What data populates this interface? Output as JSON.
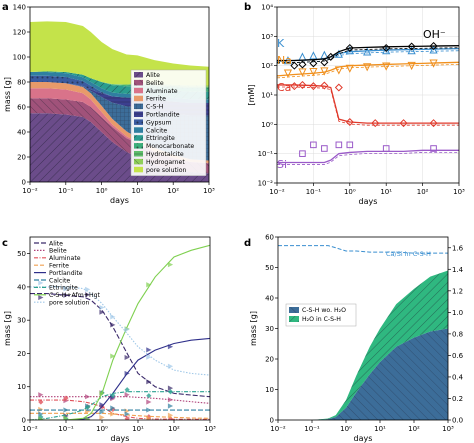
{
  "panels": {
    "a": {
      "label": "a",
      "xlabel": "days",
      "ylabel": "mass [g]",
      "xticks": [
        "10⁻²",
        "10⁻¹",
        "10⁰",
        "10¹",
        "10²",
        "10³"
      ],
      "yticks": [
        "0",
        "20",
        "40",
        "60",
        "80",
        "100",
        "120",
        "140"
      ],
      "legend": [
        "Alite",
        "Belite",
        "Aluminate",
        "Ferrite",
        "C-S-H",
        "Portlandite",
        "Gypsum",
        "Calcite",
        "Ettringite",
        "Monocarbonate",
        "Hydrotalcite",
        "Hydrogarnet",
        "pore solution"
      ],
      "colors": {
        "Alite": "#6b4c8a",
        "Belite": "#a0527a",
        "Aluminate": "#d9738a",
        "Ferrite": "#e89a6a",
        "C-S-H": "#3c6d99",
        "Portlandite": "#3b3f8f",
        "Gypsum": "#3a5ba0",
        "Calcite": "#2f7fa0",
        "Ettringite": "#2a9d8f",
        "Monocarbonate": "#3cae7a",
        "Hydrotalcite": "#5fbe6a",
        "Hydrogarnet": "#8fcf5a",
        "pore solution": "#c4e34a"
      }
    },
    "b": {
      "label": "b",
      "xlabel": "days",
      "ylabel": "[mM]",
      "xticks": [
        "10⁻²",
        "10⁻¹",
        "10⁰",
        "10¹",
        "10²",
        "10³"
      ],
      "yticks": [
        "10⁻²",
        "10⁻¹",
        "10⁰",
        "10¹",
        "10²",
        "10³",
        "10⁴"
      ],
      "species": [
        {
          "name": "K",
          "color": "#3a8fd0"
        },
        {
          "name": "Na",
          "color": "#f0901e"
        },
        {
          "name": "Ca",
          "color": "#e03a2c"
        },
        {
          "name": "Si",
          "color": "#9a5ac8"
        },
        {
          "name": "OH⁻",
          "color": "#000000"
        }
      ]
    },
    "c": {
      "label": "c",
      "xlabel": "days",
      "ylabel": "mass [g]",
      "xticks": [
        "10⁻²",
        "10⁻¹",
        "10⁰",
        "10¹",
        "10²",
        "10³"
      ],
      "yticks": [
        "0",
        "10",
        "20",
        "30",
        "40",
        "50"
      ],
      "legend": [
        {
          "name": "Alite",
          "color": "#3b2a6b",
          "dash": "5,2"
        },
        {
          "name": "Belite",
          "color": "#b0427a",
          "dash": "1.5,1.5"
        },
        {
          "name": "Aluminate",
          "color": "#e0505a",
          "dash": "4,1.5,1,1.5"
        },
        {
          "name": "Ferrite",
          "color": "#f0a050",
          "dash": "4,2"
        },
        {
          "name": "Portlandite",
          "color": "#2e2f8a",
          "dash": ""
        },
        {
          "name": "Calcite",
          "color": "#2f7fa0",
          "dash": "5,2"
        },
        {
          "name": "Ettringite",
          "color": "#2aa090",
          "dash": "4,1.5,1,1.5"
        },
        {
          "name": "C-S-H+Afm+Hgt",
          "color": "#7fd050",
          "dash": ""
        },
        {
          "name": "pore solution",
          "color": "#a0c8e8",
          "dash": "1.5,1.5"
        }
      ]
    },
    "d": {
      "label": "d",
      "xlabel": "days",
      "ylabel": "mass [g]",
      "xticks": [
        "10⁻²",
        "10⁻¹",
        "10⁰",
        "10¹",
        "10²",
        "10³"
      ],
      "yticks": [
        "0",
        "10",
        "20",
        "30",
        "40",
        "50",
        "60"
      ],
      "y2ticks": [
        "0.0",
        "0.2",
        "0.4",
        "0.6",
        "0.8",
        "1.0",
        "1.2",
        "1.4",
        "1.6"
      ],
      "casi_label": "Ca/Si in C-S-H",
      "legend": [
        "C-S-H wo. H₂O",
        "H₂O in C-S-H"
      ],
      "colors": {
        "csh": "#3c6d99",
        "water": "#2fb880",
        "casi": "#3a8fd0"
      }
    }
  },
  "chart_data": [
    {
      "type": "area",
      "panel": "a",
      "xscale": "log",
      "xlim": [
        0.01,
        1000
      ],
      "ylim": [
        0,
        140
      ],
      "x": [
        0.01,
        0.03,
        0.1,
        0.3,
        0.5,
        1,
        2,
        5,
        10,
        30,
        100,
        300,
        1000
      ],
      "series": [
        {
          "name": "Alite",
          "values": [
            55,
            55,
            54,
            52,
            48,
            40,
            32,
            24,
            20,
            14,
            10,
            8,
            7
          ]
        },
        {
          "name": "Belite",
          "values": [
            12,
            12,
            12,
            12,
            12,
            12,
            12,
            11,
            11,
            10,
            9,
            8,
            8
          ]
        },
        {
          "name": "Aluminate",
          "values": [
            8,
            8,
            8,
            7,
            6,
            4,
            2,
            1.5,
            1,
            0.5,
            0.3,
            0.2,
            0.2
          ]
        },
        {
          "name": "Ferrite",
          "values": [
            5,
            5,
            5,
            5,
            5,
            5,
            4.5,
            4,
            3.5,
            3,
            2.5,
            2,
            2
          ]
        },
        {
          "name": "C-S-H",
          "values": [
            0,
            0,
            0,
            0.5,
            2,
            7,
            13,
            20,
            24,
            29,
            33,
            35,
            36
          ]
        },
        {
          "name": "Portlandite",
          "values": [
            0,
            0,
            0,
            0.3,
            1,
            3,
            5,
            7,
            8,
            9,
            9.5,
            10,
            10
          ]
        },
        {
          "name": "Gypsum",
          "values": [
            5,
            5,
            5,
            4,
            3,
            1,
            0,
            0,
            0,
            0,
            0,
            0,
            0
          ]
        },
        {
          "name": "Calcite",
          "values": [
            3,
            3,
            3,
            3,
            3,
            3,
            3,
            3,
            3,
            3,
            3,
            3,
            3
          ]
        },
        {
          "name": "Ettringite",
          "values": [
            0,
            0.5,
            1,
            2,
            3,
            5,
            6,
            6,
            6,
            6,
            6,
            6,
            6
          ]
        },
        {
          "name": "Monocarbonate",
          "values": [
            0,
            0,
            0,
            0,
            0,
            0,
            0.5,
            1,
            1.5,
            2,
            2.5,
            3,
            3
          ]
        },
        {
          "name": "Hydrotalcite",
          "values": [
            0,
            0,
            0,
            0,
            0,
            0,
            0.3,
            0.5,
            0.8,
            1,
            1,
            1,
            1
          ]
        },
        {
          "name": "Hydrogarnet",
          "values": [
            0,
            0,
            0,
            0,
            0,
            0,
            0,
            0,
            0.5,
            1,
            1,
            1,
            1
          ]
        },
        {
          "name": "pore solution",
          "values": [
            40,
            40,
            40,
            39,
            37,
            32,
            28,
            24,
            22,
            19,
            17,
            16,
            15
          ]
        }
      ]
    },
    {
      "type": "line",
      "panel": "b",
      "xscale": "log",
      "yscale": "log",
      "xlim": [
        0.01,
        1000
      ],
      "ylim": [
        0.01,
        10000
      ],
      "x": [
        0.01,
        0.03,
        0.1,
        0.2,
        0.3,
        0.5,
        1,
        3,
        10,
        30,
        100,
        300,
        1000
      ],
      "series": [
        {
          "name": "K",
          "values": [
            140,
            150,
            160,
            170,
            200,
            260,
            300,
            320,
            340,
            350,
            360,
            370,
            380
          ],
          "points_x": [
            0.02,
            0.05,
            0.1,
            0.2,
            0.5,
            1,
            3,
            10,
            50,
            200
          ],
          "points_y": [
            150,
            200,
            220,
            230,
            250,
            330,
            300,
            330,
            330,
            350
          ]
        },
        {
          "name": "Na",
          "values": [
            45,
            50,
            55,
            60,
            70,
            90,
            100,
            105,
            110,
            115,
            120,
            125,
            130
          ],
          "points_x": [
            0.02,
            0.05,
            0.1,
            0.2,
            0.5,
            1,
            3,
            10,
            50,
            200
          ],
          "points_y": [
            55,
            60,
            62,
            65,
            70,
            80,
            90,
            95,
            100,
            120
          ]
        },
        {
          "name": "Ca",
          "values": [
            22,
            22,
            21,
            20,
            18,
            1.5,
            1.2,
            1.1,
            1.1,
            1.1,
            1.1,
            1.1,
            1.1
          ],
          "points_x": [
            0.03,
            0.05,
            0.1,
            0.2,
            0.5,
            1,
            5,
            30,
            200
          ],
          "points_y": [
            20,
            22,
            20,
            21,
            18,
            1.2,
            1.1,
            1.1,
            1.1
          ]
        },
        {
          "name": "Si",
          "values": [
            0.05,
            0.05,
            0.05,
            0.05,
            0.06,
            0.1,
            0.11,
            0.12,
            0.12,
            0.12,
            0.13,
            0.13,
            0.13
          ],
          "points_x": [
            0.05,
            0.1,
            0.2,
            0.5,
            1,
            10,
            200
          ],
          "points_y": [
            0.1,
            0.2,
            0.15,
            0.2,
            0.2,
            0.15,
            0.15
          ]
        },
        {
          "name": "OH⁻",
          "values": [
            150,
            150,
            160,
            170,
            200,
            300,
            400,
            420,
            440,
            450,
            460,
            470,
            480
          ],
          "points_x": [
            0.03,
            0.05,
            0.1,
            0.2,
            0.3,
            1,
            10,
            50,
            200
          ],
          "points_y": [
            100,
            110,
            120,
            130,
            200,
            400,
            400,
            450,
            470
          ]
        }
      ]
    },
    {
      "type": "line",
      "panel": "c",
      "xscale": "log",
      "xlim": [
        0.01,
        1000
      ],
      "ylim": [
        0,
        55
      ],
      "x": [
        0.01,
        0.03,
        0.1,
        0.3,
        0.5,
        1,
        2,
        5,
        10,
        30,
        100,
        300,
        1000
      ],
      "series": [
        {
          "name": "Alite",
          "values": [
            38,
            38,
            37.5,
            37,
            36,
            33,
            28,
            20,
            14,
            10,
            8,
            7.5,
            7
          ]
        },
        {
          "name": "Belite",
          "values": [
            7,
            7,
            7,
            7,
            7,
            7,
            7,
            7,
            6.8,
            6.5,
            6,
            5.5,
            5
          ]
        },
        {
          "name": "Aluminate",
          "values": [
            6,
            6,
            6,
            5.5,
            5,
            4,
            2,
            1,
            0.5,
            0.3,
            0.2,
            0.2,
            0.2
          ]
        },
        {
          "name": "Ferrite",
          "values": [
            2,
            2,
            2,
            2,
            2,
            2,
            1.8,
            1.5,
            1.3,
            1,
            0.8,
            0.6,
            0.5
          ]
        },
        {
          "name": "Portlandite",
          "values": [
            0,
            0,
            0,
            0.2,
            1,
            4,
            8,
            14,
            18,
            21,
            23,
            24,
            24.5
          ]
        },
        {
          "name": "Calcite",
          "values": [
            3,
            3,
            3,
            3,
            3,
            3,
            3,
            3,
            3,
            3,
            3,
            3,
            3
          ]
        },
        {
          "name": "Ettringite",
          "values": [
            0,
            0.5,
            1.5,
            3,
            4.5,
            7,
            8,
            8.5,
            8.5,
            8.5,
            8.5,
            8.5,
            8.5
          ]
        },
        {
          "name": "C-S-H+Afm+Hgt",
          "values": [
            0,
            0,
            0,
            0.5,
            2,
            8,
            18,
            28,
            35,
            43,
            49,
            51,
            52.5
          ]
        },
        {
          "name": "pore solution",
          "values": [
            40,
            40,
            40,
            39.5,
            38,
            35,
            31,
            26,
            22,
            18,
            15,
            14,
            13.5
          ]
        }
      ]
    },
    {
      "type": "area",
      "panel": "d",
      "xscale": "log",
      "xlim": [
        0.01,
        1000
      ],
      "ylim": [
        0,
        60
      ],
      "y2lim": [
        0,
        1.7
      ],
      "x": [
        0.01,
        0.1,
        0.3,
        0.5,
        1,
        2,
        5,
        10,
        30,
        100,
        300,
        1000
      ],
      "series": [
        {
          "name": "C-S-H wo. H₂O",
          "values": [
            0,
            0,
            0.3,
            1,
            4,
            9,
            15,
            19,
            24,
            27,
            29,
            30
          ]
        },
        {
          "name": "H₂O in C-S-H",
          "values": [
            0,
            0,
            0.2,
            0.6,
            2.5,
            5.5,
            9,
            11,
            14,
            16,
            18,
            19
          ]
        },
        {
          "name": "Ca/Si in C-S-H",
          "axis": "right",
          "values": [
            1.62,
            1.62,
            1.62,
            1.6,
            1.57,
            1.57,
            1.56,
            1.56,
            1.56,
            1.55,
            1.55,
            1.55
          ]
        }
      ]
    }
  ]
}
